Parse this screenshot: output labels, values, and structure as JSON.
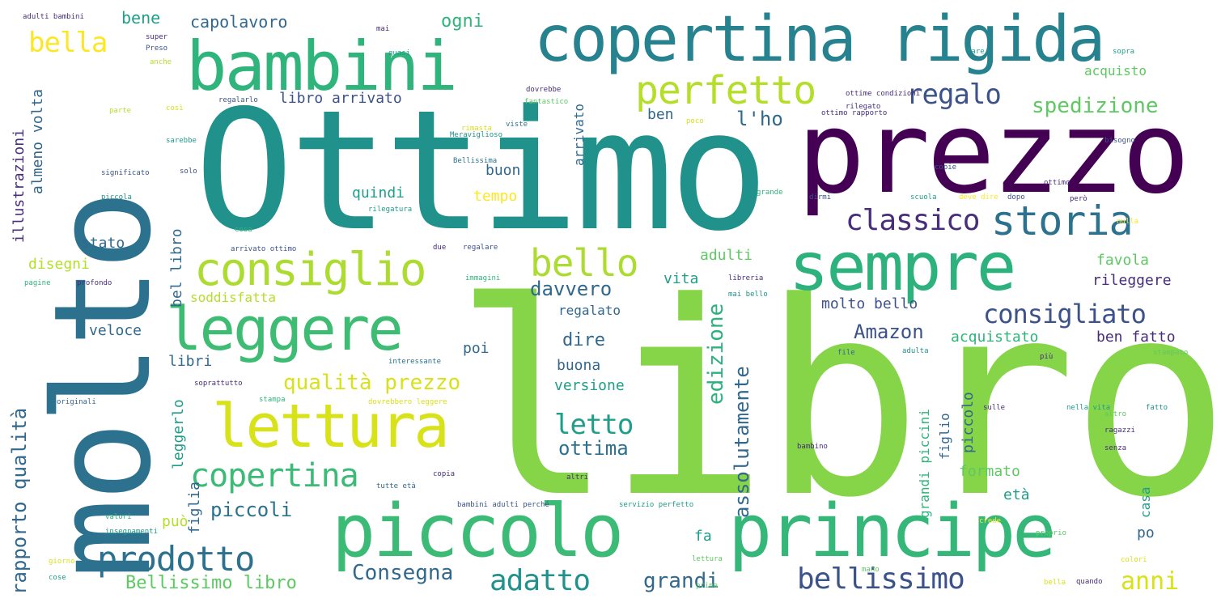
{
  "palette": {
    "libro": "#86d549",
    "ottimo": "#21918c",
    "molto": "#2c728e",
    "prezzo": "#440154",
    "bambini": "#2fb47c",
    "copertina_rigida": "#26828e",
    "piccolo": "#3bbb75",
    "principe": "#35b779",
    "sempre": "#2db27d",
    "leggere": "#3fbc73",
    "lettura": "#d8e219",
    "consiglio": "#addc30",
    "yellow": "#fde725",
    "lime": "#b5de2b",
    "green": "#5ec962",
    "teal": "#1f9e89",
    "blue": "#3b528b",
    "purple": "#472d7b",
    "indigo": "#31688e"
  },
  "words": [
    {
      "id": "libro",
      "text": "libro"
    },
    {
      "id": "ottimo",
      "text": "Ottimo"
    },
    {
      "id": "molto",
      "text": "molto"
    },
    {
      "id": "prezzo",
      "text": "prezzo"
    },
    {
      "id": "bambini",
      "text": "bambini"
    },
    {
      "id": "copertina-rigida",
      "text": "copertina rigida"
    },
    {
      "id": "piccolo",
      "text": "piccolo"
    },
    {
      "id": "principe",
      "text": "principe"
    },
    {
      "id": "sempre",
      "text": "sempre"
    },
    {
      "id": "leggere",
      "text": "leggere"
    },
    {
      "id": "lettura",
      "text": "lettura"
    },
    {
      "id": "consiglio",
      "text": "consiglio"
    },
    {
      "id": "storia",
      "text": "storia"
    },
    {
      "id": "perfetto",
      "text": "perfetto"
    },
    {
      "id": "prodotto",
      "text": "prodotto"
    },
    {
      "id": "bello",
      "text": "bello"
    },
    {
      "id": "copertina",
      "text": "copertina"
    },
    {
      "id": "classico",
      "text": "classico"
    },
    {
      "id": "consigliato",
      "text": "consigliato"
    },
    {
      "id": "bellissimo",
      "text": "bellissimo"
    },
    {
      "id": "adatto",
      "text": "adatto"
    },
    {
      "id": "regalo",
      "text": "regalo"
    },
    {
      "id": "bella",
      "text": "bella"
    },
    {
      "id": "letto",
      "text": "letto"
    },
    {
      "id": "anni",
      "text": "anni"
    },
    {
      "id": "qualita-prezzo",
      "text": "qualità prezzo"
    },
    {
      "id": "spedizione",
      "text": "spedizione"
    },
    {
      "id": "consegna",
      "text": "Consegna"
    },
    {
      "id": "piccoli",
      "text": "piccoli"
    },
    {
      "id": "grandi",
      "text": "grandi"
    },
    {
      "id": "ottima",
      "text": "ottima"
    },
    {
      "id": "amazon",
      "text": "Amazon"
    },
    {
      "id": "davvero",
      "text": "davvero"
    },
    {
      "id": "bellissimo-libro",
      "text": "Bellissimo libro"
    },
    {
      "id": "libro-arrivato",
      "text": "libro arrivato"
    },
    {
      "id": "ogni",
      "text": "ogni"
    },
    {
      "id": "capolavoro",
      "text": "capolavoro"
    },
    {
      "id": "bene",
      "text": "bene"
    },
    {
      "id": "l-ho",
      "text": "l'ho"
    },
    {
      "id": "buon",
      "text": "buon"
    },
    {
      "id": "quindi",
      "text": "quindi"
    },
    {
      "id": "tempo",
      "text": "tempo"
    },
    {
      "id": "dire",
      "text": "dire"
    },
    {
      "id": "buona",
      "text": "buona"
    },
    {
      "id": "versione",
      "text": "versione"
    },
    {
      "id": "vita",
      "text": "vita"
    },
    {
      "id": "adulti",
      "text": "adulti"
    },
    {
      "id": "favola",
      "text": "favola"
    },
    {
      "id": "rileggere",
      "text": "rileggere"
    },
    {
      "id": "molto-bello",
      "text": "molto bello"
    },
    {
      "id": "acquistato",
      "text": "acquistato"
    },
    {
      "id": "ben-fatto",
      "text": "ben fatto"
    },
    {
      "id": "regalato",
      "text": "regalato"
    },
    {
      "id": "stato",
      "text": "stato"
    },
    {
      "id": "disegni",
      "text": "disegni"
    },
    {
      "id": "soddisfatta",
      "text": "soddisfatta"
    },
    {
      "id": "veloce",
      "text": "veloce"
    },
    {
      "id": "libri",
      "text": "libri"
    },
    {
      "id": "formato",
      "text": "formato"
    },
    {
      "id": "eta",
      "text": "età"
    },
    {
      "id": "poi",
      "text": "poi"
    },
    {
      "id": "puo",
      "text": "può"
    },
    {
      "id": "fa",
      "text": "fa"
    },
    {
      "id": "po",
      "text": "po"
    },
    {
      "id": "acquisto",
      "text": "acquisto"
    },
    {
      "id": "ben",
      "text": "ben"
    },
    {
      "id": "rapporto-qualita",
      "text": "rapporto qualità"
    },
    {
      "id": "illustrazioni",
      "text": "illustrazioni"
    },
    {
      "id": "almeno-volta",
      "text": "almeno volta"
    },
    {
      "id": "bel-libro",
      "text": "bel libro"
    },
    {
      "id": "leggerlo",
      "text": "leggerlo"
    },
    {
      "id": "figlia",
      "text": "figlia"
    },
    {
      "id": "edizione",
      "text": "edizione"
    },
    {
      "id": "assolutamente",
      "text": "assolutamente"
    },
    {
      "id": "arrivato",
      "text": "arrivato"
    },
    {
      "id": "grandi-piccini",
      "text": "grandi piccini"
    },
    {
      "id": "figlio",
      "text": "figlio"
    },
    {
      "id": "piccolo-small",
      "text": "piccolo"
    },
    {
      "id": "casa",
      "text": "casa"
    },
    {
      "id": "s1",
      "text": "super"
    },
    {
      "id": "s2",
      "text": "Preso"
    },
    {
      "id": "s3",
      "text": "bambini adulti perché"
    },
    {
      "id": "s4",
      "text": "Meraviglioso"
    },
    {
      "id": "s5",
      "text": "fantastico"
    },
    {
      "id": "s6",
      "text": "regalarlo"
    },
    {
      "id": "s7",
      "text": "Bellissima"
    },
    {
      "id": "s8",
      "text": "rilegatura"
    },
    {
      "id": "s9",
      "text": "grande"
    },
    {
      "id": "s10",
      "text": "copie"
    },
    {
      "id": "s11",
      "text": "scuola"
    },
    {
      "id": "s12",
      "text": "dopo"
    },
    {
      "id": "s13",
      "text": "pagine"
    },
    {
      "id": "s14",
      "text": "profondo"
    },
    {
      "id": "s15",
      "text": "immagini"
    },
    {
      "id": "s16",
      "text": "regalare"
    },
    {
      "id": "s17",
      "text": "due"
    },
    {
      "id": "s18",
      "text": "arrivato ottimo"
    },
    {
      "id": "s19",
      "text": "originali"
    },
    {
      "id": "s20",
      "text": "stampa"
    },
    {
      "id": "s21",
      "text": "dovrebbero leggere"
    },
    {
      "id": "s22",
      "text": "soprattutto"
    },
    {
      "id": "s23",
      "text": "interessante"
    },
    {
      "id": "s24",
      "text": "giorno"
    },
    {
      "id": "s25",
      "text": "cose"
    },
    {
      "id": "s26",
      "text": "valori"
    },
    {
      "id": "s27",
      "text": "insegnamenti"
    },
    {
      "id": "s28",
      "text": "altri"
    },
    {
      "id": "s29",
      "text": "copia"
    },
    {
      "id": "s30",
      "text": "tutte età"
    },
    {
      "id": "s31",
      "text": "servizio perfetto"
    },
    {
      "id": "s32",
      "text": "lettura"
    },
    {
      "id": "s33",
      "text": "prima"
    },
    {
      "id": "s34",
      "text": "colori"
    },
    {
      "id": "s35",
      "text": "quando"
    },
    {
      "id": "s36",
      "text": "bella"
    },
    {
      "id": "s37",
      "text": "proprio"
    },
    {
      "id": "s38",
      "text": "crede"
    },
    {
      "id": "s39",
      "text": "bambino"
    },
    {
      "id": "s40",
      "text": "ragazzi"
    },
    {
      "id": "s41",
      "text": "senza"
    },
    {
      "id": "s42",
      "text": "altro"
    },
    {
      "id": "s43",
      "text": "stampato"
    },
    {
      "id": "s44",
      "text": "più"
    },
    {
      "id": "s45",
      "text": "file"
    },
    {
      "id": "s46",
      "text": "adulta"
    },
    {
      "id": "s47",
      "text": "mai bello"
    },
    {
      "id": "s48",
      "text": "libreria"
    },
    {
      "id": "s49",
      "text": "ottimo rapporto"
    },
    {
      "id": "s50",
      "text": "ottime condizioni"
    },
    {
      "id": "s51",
      "text": "rilegato"
    },
    {
      "id": "s52",
      "text": "parte"
    },
    {
      "id": "s53",
      "text": "così"
    },
    {
      "id": "s54",
      "text": "sarebbe"
    },
    {
      "id": "s55",
      "text": "significato"
    },
    {
      "id": "s56",
      "text": "solo"
    },
    {
      "id": "s57",
      "text": "piccola"
    },
    {
      "id": "s58",
      "text": "adulti bambini"
    },
    {
      "id": "s59",
      "text": "mai"
    },
    {
      "id": "s60",
      "text": "anche"
    },
    {
      "id": "s61",
      "text": "dovrebbe"
    },
    {
      "id": "s62",
      "text": "rimasta"
    },
    {
      "id": "s63",
      "text": "viste"
    },
    {
      "id": "s64",
      "text": "poco"
    },
    {
      "id": "s65",
      "text": "dirmi"
    },
    {
      "id": "s66",
      "text": "deve dire"
    },
    {
      "id": "s67",
      "text": "però"
    },
    {
      "id": "s68",
      "text": "ottimo"
    },
    {
      "id": "s69",
      "text": "bisogno"
    },
    {
      "id": "s70",
      "text": "nulla"
    },
    {
      "id": "s71",
      "text": "sopra"
    },
    {
      "id": "s72",
      "text": "fare"
    },
    {
      "id": "s73",
      "text": "quasi"
    },
    {
      "id": "s74",
      "text": "cosa"
    },
    {
      "id": "s75",
      "text": "sulle"
    },
    {
      "id": "s76",
      "text": "nella vita"
    },
    {
      "id": "s77",
      "text": "fatto"
    },
    {
      "id": "s78",
      "text": "mano"
    }
  ]
}
